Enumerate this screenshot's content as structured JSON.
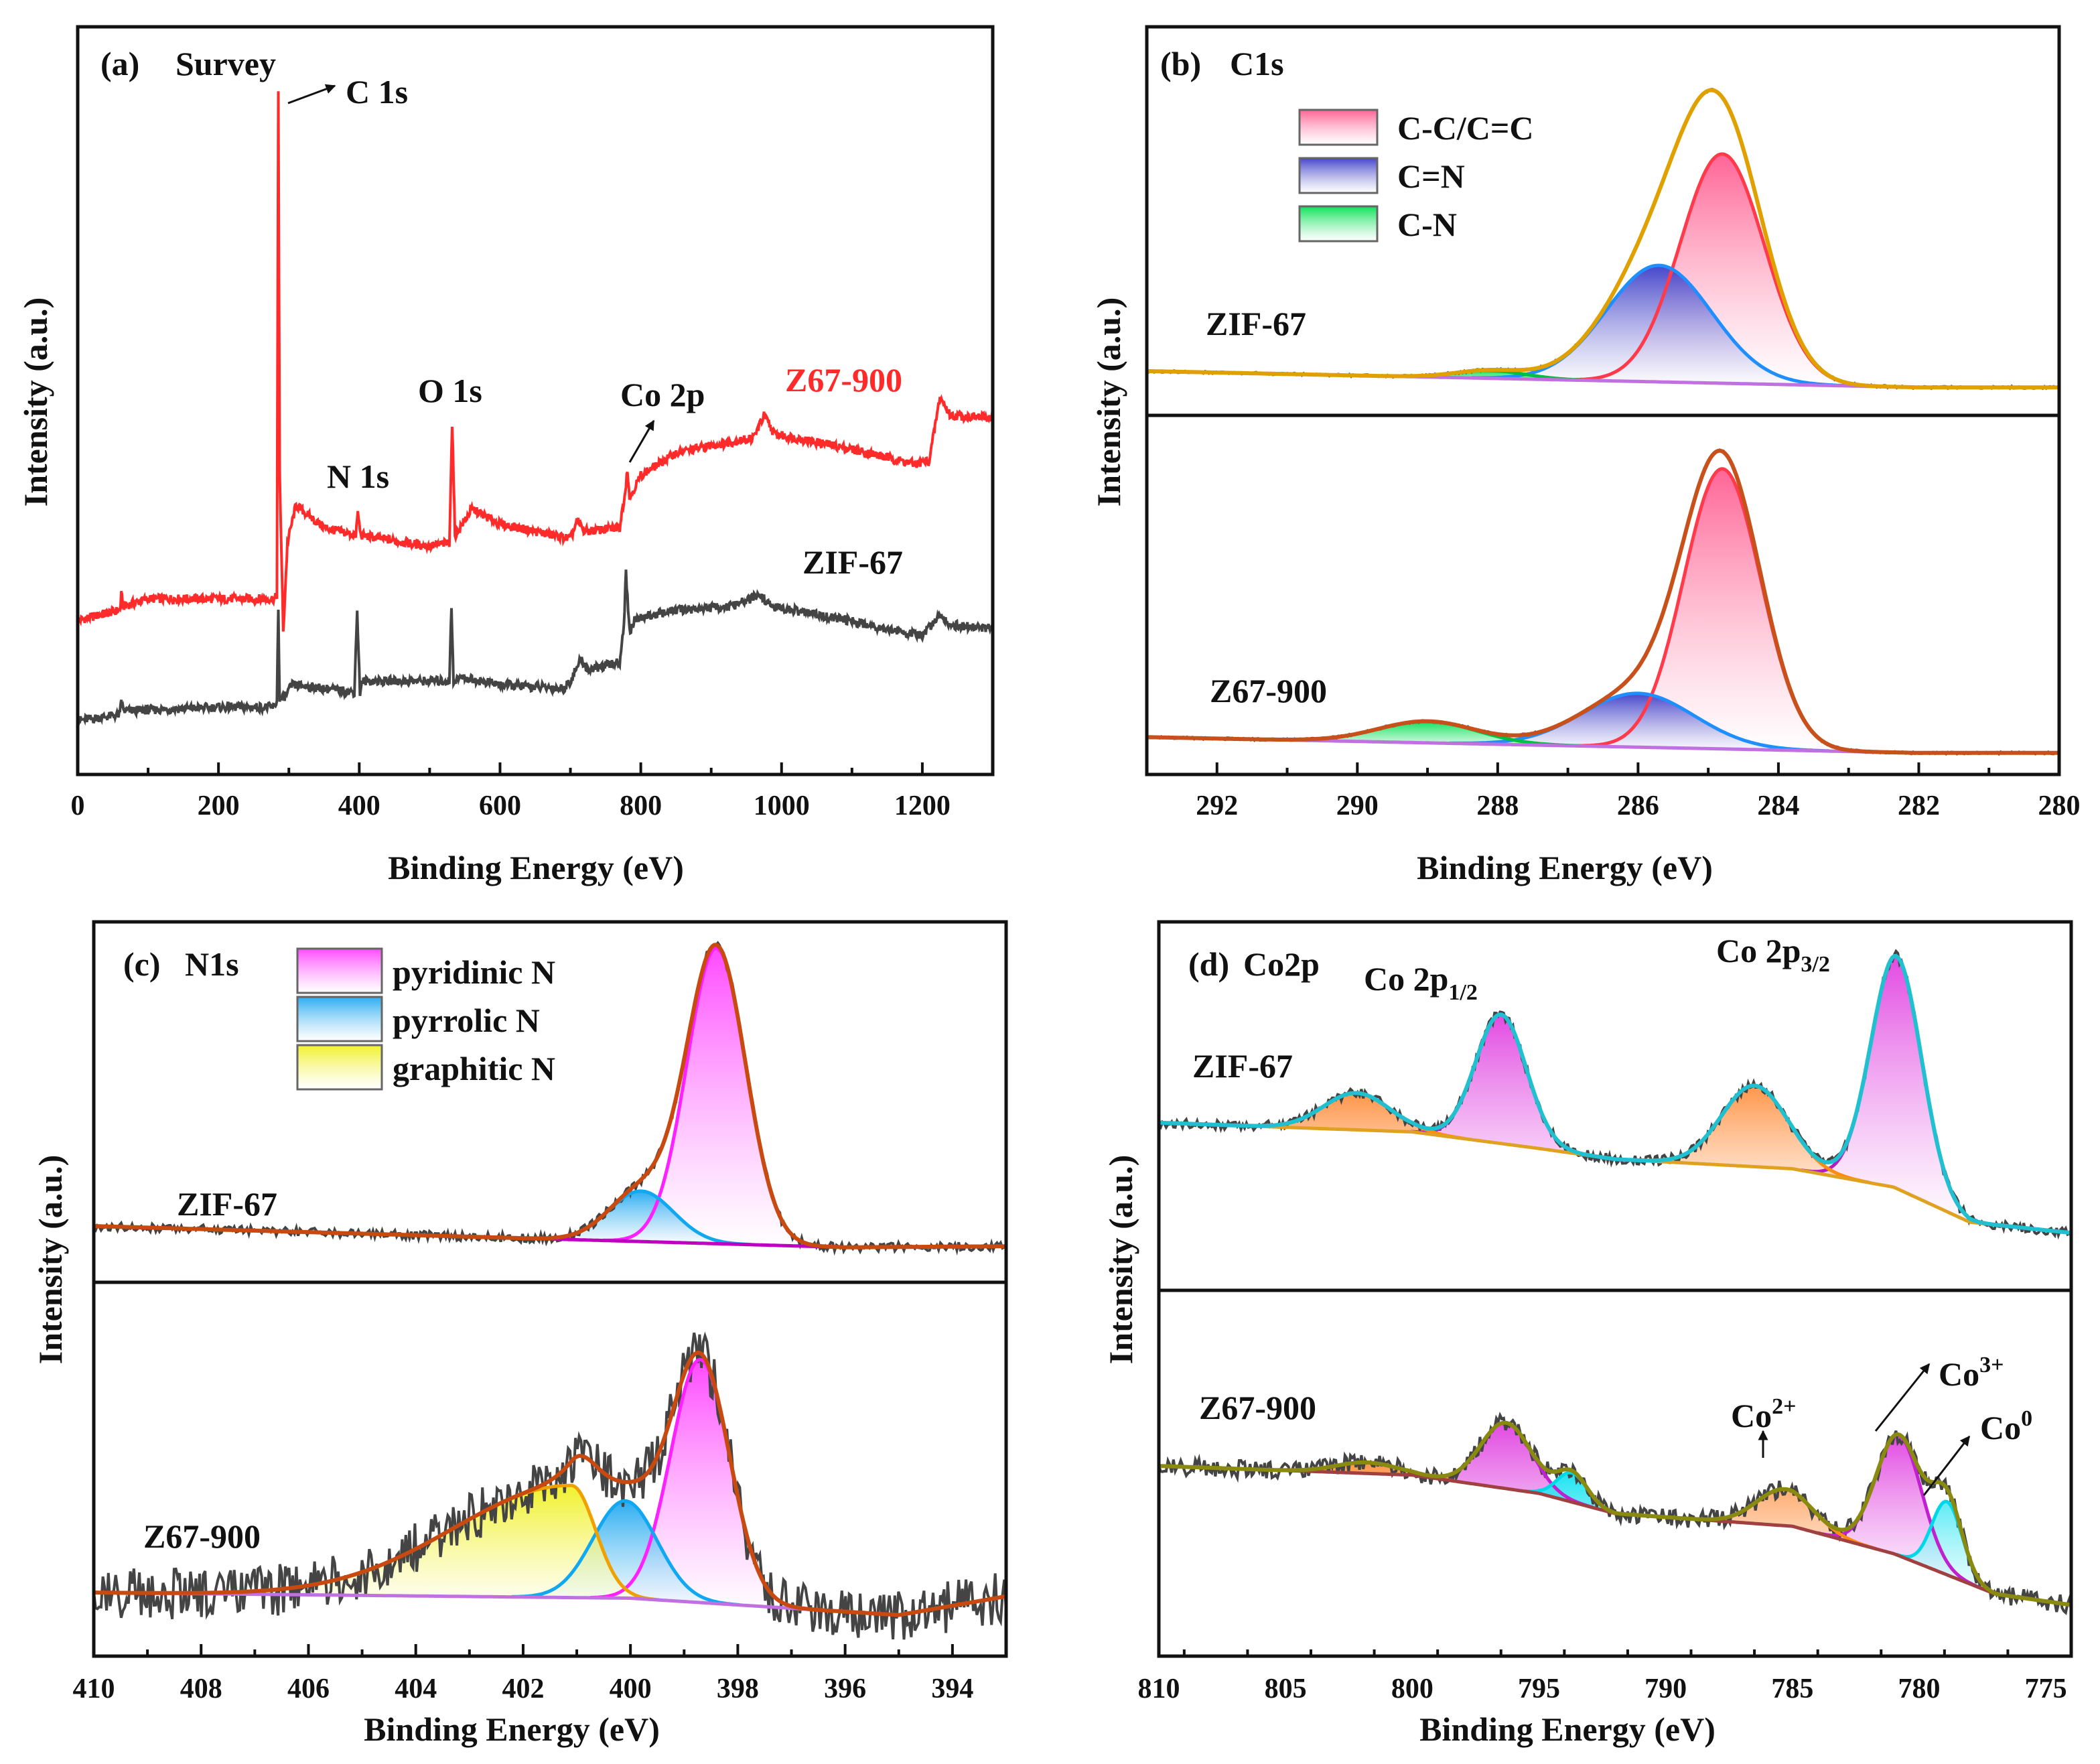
{
  "figure": {
    "panel_a": {
      "letter": "(a)",
      "title": "Survey",
      "xlabel": "Binding Energy  (eV)",
      "ylabel": "Intensity (a.u.)",
      "annotations": {
        "c1s": "C 1s",
        "n1s": "N 1s",
        "o1s": "O 1s",
        "co2p": "Co 2p",
        "z67": "Z67-900",
        "zif": "ZIF-67"
      }
    },
    "panel_b": {
      "letter": "(b)",
      "title": "C1s",
      "xlabel": "Binding Energy  (eV)",
      "ylabel": "Intensity (a.u.)",
      "legend": [
        "C-C/C=C",
        "C=N",
        "C-N"
      ],
      "zif": "ZIF-67",
      "z67": "Z67-900"
    },
    "panel_c": {
      "letter": "(c)",
      "title": "N1s",
      "xlabel": "Binding Energy  (eV)",
      "ylabel": "Intensity (a.u.)",
      "legend": [
        "pyridinic N",
        "pyrrolic N",
        "graphitic N"
      ],
      "zif": "ZIF-67",
      "z67": "Z67-900"
    },
    "panel_d": {
      "letter": "(d)",
      "title": "Co2p",
      "xlabel": "Binding Energy  (eV)",
      "ylabel": "Intensity (a.u.)",
      "p12_main": "Co 2p",
      "p12_sub": "1/2",
      "p32_main": "Co 2p",
      "p32_sub": "3/2",
      "zif": "ZIF-67",
      "z67": "Z67-900",
      "co2": "Co",
      "co2_sup": "2+",
      "co3": "Co",
      "co3_sup": "3+",
      "co0": "Co",
      "co0_sup": "0"
    }
  },
  "chart_data": [
    {
      "id": "a",
      "type": "line",
      "title": "(a) Survey",
      "xlabel": "Binding Energy (eV)",
      "ylabel": "Intensity (a.u.)",
      "xlim": [
        0,
        1300
      ],
      "ylim": [
        0,
        100
      ],
      "xticks": [
        0,
        200,
        400,
        600,
        800,
        1000,
        1200
      ],
      "minor_step": 100,
      "series": [
        {
          "name": "Z67-900",
          "color": "#ff2a2a",
          "noise": 0.6,
          "points": [
            [
              0,
              20.6
            ],
            [
              60,
              22
            ],
            [
              62,
              24
            ],
            [
              65,
              22.5
            ],
            [
              100,
              23.5
            ],
            [
              280,
              23.5
            ],
            [
              283,
              24
            ],
            [
              285,
              91
            ],
            [
              287,
              40
            ],
            [
              292,
              19
            ],
            [
              298,
              31
            ],
            [
              310,
              36
            ],
            [
              350,
              33
            ],
            [
              395,
              32
            ],
            [
              398,
              35
            ],
            [
              402,
              32
            ],
            [
              500,
              30.5
            ],
            [
              528,
              31
            ],
            [
              532,
              47
            ],
            [
              536,
              32
            ],
            [
              560,
              35.5
            ],
            [
              600,
              33.5
            ],
            [
              700,
              31.5
            ],
            [
              710,
              34
            ],
            [
              720,
              32.5
            ],
            [
              770,
              33
            ],
            [
              778,
              38
            ],
            [
              781,
              41
            ],
            [
              784,
              37
            ],
            [
              800,
              40
            ],
            [
              850,
              43
            ],
            [
              900,
              44
            ],
            [
              960,
              45
            ],
            [
              975,
              48
            ],
            [
              990,
              45.5
            ],
            [
              1020,
              45
            ],
            [
              1100,
              43.5
            ],
            [
              1190,
              41.5
            ],
            [
              1210,
              42
            ],
            [
              1225,
              50.5
            ],
            [
              1240,
              48
            ],
            [
              1300,
              47.7
            ]
          ]
        },
        {
          "name": "ZIF-67",
          "color": "#444444",
          "noise": 0.6,
          "points": [
            [
              0,
              7.2
            ],
            [
              60,
              8
            ],
            [
              62,
              10
            ],
            [
              65,
              8.5
            ],
            [
              200,
              9
            ],
            [
              280,
              9
            ],
            [
              283,
              10
            ],
            [
              285,
              22
            ],
            [
              287,
              10
            ],
            [
              295,
              10.5
            ],
            [
              305,
              12
            ],
            [
              393,
              11
            ],
            [
              397,
              22
            ],
            [
              401,
              11
            ],
            [
              405,
              12.5
            ],
            [
              520,
              12.5
            ],
            [
              528,
              12.5
            ],
            [
              531,
              22.4
            ],
            [
              534,
              12.5
            ],
            [
              545,
              13
            ],
            [
              600,
              12
            ],
            [
              690,
              11.5
            ],
            [
              700,
              12.5
            ],
            [
              715,
              15.4
            ],
            [
              725,
              14
            ],
            [
              770,
              15
            ],
            [
              776,
              20
            ],
            [
              779,
              27
            ],
            [
              782,
              22
            ],
            [
              785,
              19
            ],
            [
              790,
              20.5
            ],
            [
              800,
              21
            ],
            [
              850,
              22
            ],
            [
              930,
              22.5
            ],
            [
              970,
              24
            ],
            [
              985,
              22.5
            ],
            [
              1100,
              20.5
            ],
            [
              1200,
              18.5
            ],
            [
              1225,
              21.5
            ],
            [
              1240,
              20
            ],
            [
              1300,
              19.5
            ]
          ]
        }
      ]
    },
    {
      "id": "b",
      "type": "line",
      "title": "(b) C1s",
      "xlabel": "Binding Energy (eV)",
      "ylabel": "Intensity (a.u.)",
      "xlim": [
        293,
        280
      ],
      "ylim": [
        0,
        100
      ],
      "xticks": [
        292,
        290,
        288,
        286,
        284,
        282,
        280
      ],
      "minor_step": 1,
      "legend": [
        {
          "label": "C-C/C=C",
          "color": "#ff5c90"
        },
        {
          "label": "C=N",
          "color": "#3c3cc8"
        },
        {
          "label": "C-N",
          "color": "#00e050"
        }
      ],
      "subplots": [
        {
          "name": "ZIF-67",
          "noise": 0.3,
          "raw_color": "#555555",
          "envelope_color": "#e0a000",
          "baseline_color": "#c070e0",
          "baseline": [
            [
              293,
              11.4
            ],
            [
              282,
              7.2
            ],
            [
              280,
              7.2
            ]
          ],
          "components": [
            {
              "name": "C-C/C=C",
              "center": 284.8,
              "height": 59,
              "sigma": 0.6,
              "line": "#ff3a4a",
              "fill": "#ff5c90"
            },
            {
              "name": "C=N",
              "center": 285.7,
              "height": 30,
              "sigma": 0.75,
              "line": "#1f8fff",
              "fill": "#3c3cc8"
            },
            {
              "name": "C-N",
              "center": 288.1,
              "height": 2,
              "sigma": 0.5,
              "line": "#00c040",
              "fill": "#00e050"
            }
          ]
        },
        {
          "name": "Z67-900",
          "noise": 0.3,
          "raw_color": "#555555",
          "envelope_color": "#c8501a",
          "baseline_color": "#c070e0",
          "baseline": [
            [
              293,
              10.4
            ],
            [
              282,
              6
            ],
            [
              280,
              6
            ]
          ],
          "components": [
            {
              "name": "C-C/C=C",
              "center": 284.8,
              "height": 78,
              "sigma": 0.55,
              "line": "#ff3a4a",
              "fill": "#ff5c90"
            },
            {
              "name": "C=N",
              "center": 286.0,
              "height": 15,
              "sigma": 0.8,
              "line": "#1f8fff",
              "fill": "#3c3cc8"
            },
            {
              "name": "C-N",
              "center": 289.0,
              "height": 6,
              "sigma": 0.7,
              "line": "#00c040",
              "fill": "#00e050"
            }
          ]
        }
      ]
    },
    {
      "id": "c",
      "type": "line",
      "title": "(c) N1s",
      "xlabel": "Binding Energy (eV)",
      "ylabel": "Intensity (a.u.)",
      "xlim": [
        410,
        393
      ],
      "ylim": [
        0,
        100
      ],
      "xticks": [
        410,
        408,
        406,
        404,
        402,
        400,
        398,
        396,
        394
      ],
      "minor_step": 1,
      "legend": [
        {
          "label": "pyridinic N",
          "color": "#ff40ff"
        },
        {
          "label": "pyrrolic N",
          "color": "#20a8f0"
        },
        {
          "label": "graphitic N",
          "color": "#f0f020"
        }
      ],
      "subplots": [
        {
          "name": "ZIF-67",
          "noise": 1.2,
          "raw_color": "#444444",
          "envelope_color": "#c84a10",
          "baseline_color": "#c000c0",
          "baseline": [
            [
              410,
              15.6
            ],
            [
              396,
              9.7
            ],
            [
              393,
              10
            ]
          ],
          "components": [
            {
              "name": "pyridinic N",
              "center": 398.4,
              "height": 82,
              "sigma": 0.55,
              "line": "#ff20ff",
              "fill": "#ff40ff"
            },
            {
              "name": "pyrrolic N",
              "center": 399.8,
              "height": 14,
              "sigma": 0.6,
              "line": "#10a8f0",
              "fill": "#20a8f0"
            }
          ]
        },
        {
          "name": "Z67-900",
          "noise": 7,
          "raw_color": "#444444",
          "envelope_color": "#c84a10",
          "baseline_color": "#c070e0",
          "baseline": [
            [
              410,
              17
            ],
            [
              400,
              15.5
            ],
            [
              395,
              11
            ],
            [
              393,
              16
            ]
          ],
          "components": [
            {
              "name": "pyridinic N",
              "center": 398.7,
              "height": 65,
              "sigma": 0.55,
              "line": "#ff20ff",
              "fill": "#ff40ff"
            },
            {
              "name": "pyrrolic N",
              "center": 400.1,
              "height": 26,
              "sigma": 0.6,
              "line": "#10a8f0",
              "fill": "#20a8f0"
            },
            {
              "name": "graphitic N",
              "center": 401.1,
              "height": 30,
              "sigma_left": 2.2,
              "sigma_right": 0.45,
              "line": "#f0a000",
              "fill": "#f0f020"
            }
          ]
        }
      ]
    },
    {
      "id": "d",
      "type": "line",
      "title": "(d) Co2p",
      "xlabel": "Binding Energy (eV)",
      "ylabel": "Intensity (a.u.)",
      "xlim": [
        810,
        774
      ],
      "ylim": [
        0,
        100
      ],
      "xticks": [
        810,
        805,
        800,
        795,
        790,
        785,
        780,
        775
      ],
      "minor_step": 2.5,
      "subplots": [
        {
          "name": "ZIF-67",
          "noise": 1.3,
          "raw_color": "#444444",
          "envelope_color": "#20c0d0",
          "baseline_color": "#e0a020",
          "baseline": [
            [
              810,
              45.5
            ],
            [
              800,
              43
            ],
            [
              795,
              38.5
            ],
            [
              792,
              35.6
            ],
            [
              785,
              33
            ],
            [
              781,
              28
            ],
            [
              778,
              18.5
            ],
            [
              774,
              15.6
            ]
          ],
          "components": [
            {
              "name": "Co 2p3/2",
              "center": 780.9,
              "height": 63,
              "sigma": 1.0,
              "line": "#b020c0",
              "fill": "#e040e0"
            },
            {
              "name": "satellite 3/2",
              "center": 786.5,
              "height": 22,
              "sigma": 1.3,
              "line": "#ff8c10",
              "fill": "#ff9040"
            },
            {
              "name": "Co 2p1/2",
              "center": 796.5,
              "height": 35,
              "sigma": 1.0,
              "line": "#b020c0",
              "fill": "#e040e0"
            },
            {
              "name": "satellite 1/2",
              "center": 802.2,
              "height": 10,
              "sigma": 1.3,
              "line": "#ff8c10",
              "fill": "#ff9040"
            }
          ]
        },
        {
          "name": "Z67-900",
          "noise": 2.5,
          "raw_color": "#444444",
          "envelope_color": "#8a8a10",
          "baseline_color": "#a04040",
          "baseline": [
            [
              810,
              52
            ],
            [
              800,
              49.5
            ],
            [
              795,
              44.5
            ],
            [
              792,
              39
            ],
            [
              785,
              35.5
            ],
            [
              781,
              28
            ],
            [
              777,
              17
            ],
            [
              774,
              14
            ]
          ],
          "components": [
            {
              "name": "Co3+ 2p3/2",
              "center": 780.8,
              "height": 33,
              "sigma": 0.9,
              "line": "#c020d0",
              "fill": "#e040e0"
            },
            {
              "name": "Co0 2p3/2",
              "center": 778.9,
              "height": 20,
              "sigma": 0.6,
              "line": "#00d8e8",
              "fill": "#00e0f0"
            },
            {
              "name": "Co2+ satellite",
              "center": 785.3,
              "height": 10,
              "sigma": 1.1,
              "line": "#ff8c10",
              "fill": "#ff9040"
            },
            {
              "name": "Co3+ 2p1/2",
              "center": 796.3,
              "height": 18,
              "sigma": 1.0,
              "line": "#c020d0",
              "fill": "#e040e0"
            },
            {
              "name": "Co0 2p1/2",
              "center": 793.7,
              "height": 8,
              "sigma": 0.6,
              "line": "#00d8e8",
              "fill": "#00e0f0"
            },
            {
              "name": "satellite 1/2",
              "center": 801.8,
              "height": 3,
              "sigma": 1.2,
              "line": "#ff8c10",
              "fill": "#ff9040"
            }
          ]
        }
      ]
    }
  ]
}
